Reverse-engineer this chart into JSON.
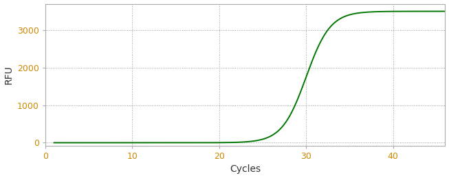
{
  "title": "",
  "xlabel": "Cycles",
  "ylabel": "RFU",
  "xlim": [
    0,
    46
  ],
  "ylim": [
    -80,
    3700
  ],
  "xticks": [
    0,
    10,
    20,
    30,
    40
  ],
  "yticks": [
    0,
    1000,
    2000,
    3000
  ],
  "line_color": "#007700",
  "line_width": 1.4,
  "background_color": "#ffffff",
  "grid_color": "#999999",
  "spine_color": "#aaaaaa",
  "tick_label_color": "#cc8800",
  "axis_label_color": "#333333",
  "sigmoid_L": 3500,
  "sigmoid_k": 0.72,
  "sigmoid_x0": 30.0,
  "x_start": 1,
  "x_end": 46,
  "xlabel_fontsize": 10,
  "ylabel_fontsize": 10,
  "tick_fontsize": 9
}
